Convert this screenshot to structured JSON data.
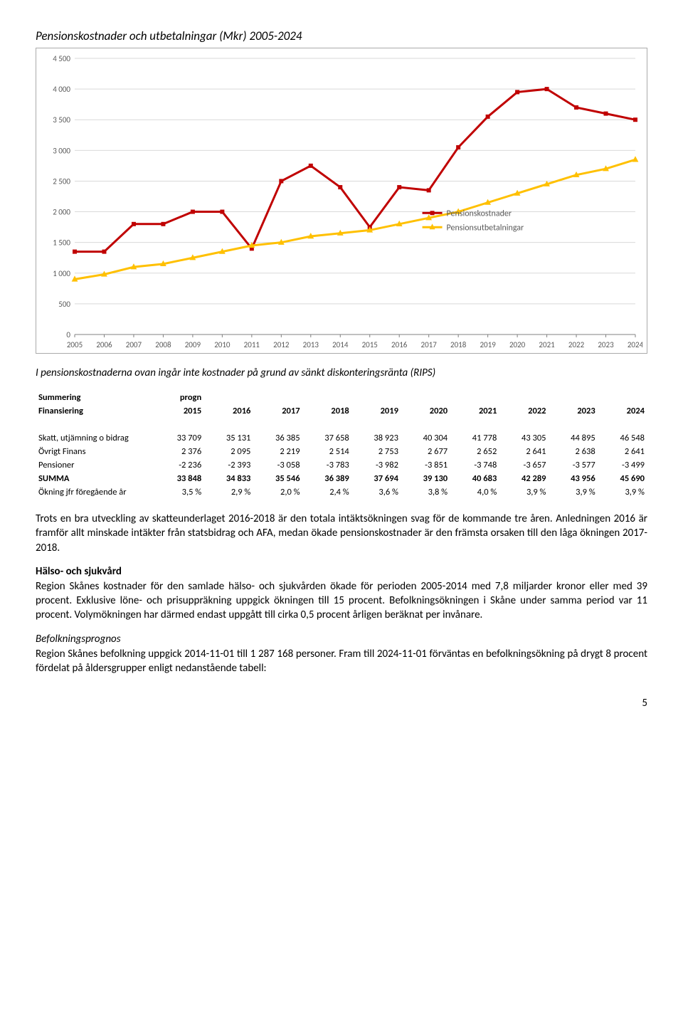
{
  "chart": {
    "title": "Pensionskostnader och utbetalningar (Mkr) 2005-2024",
    "type": "line",
    "background_color": "#ffffff",
    "grid_color": "#d9d9d9",
    "axis_color": "#808080",
    "xlabels": [
      "2005",
      "2006",
      "2007",
      "2008",
      "2009",
      "2010",
      "2011",
      "2012",
      "2013",
      "2014",
      "2015",
      "2016",
      "2017",
      "2018",
      "2019",
      "2020",
      "2021",
      "2022",
      "2023",
      "2024"
    ],
    "ylim": [
      0,
      4500
    ],
    "ytick_step": 500,
    "yticks": [
      "0",
      "500",
      "1 000",
      "1 500",
      "2 000",
      "2 500",
      "3 000",
      "3 500",
      "4 000",
      "4 500"
    ],
    "series": [
      {
        "name": "Pensionskostnader",
        "color": "#c00000",
        "marker": "square",
        "marker_size": 6,
        "line_width": 3,
        "values": [
          1350,
          1350,
          1800,
          1800,
          2000,
          2000,
          1400,
          2500,
          2750,
          2400,
          1750,
          2400,
          2350,
          3050,
          3550,
          3950,
          4000,
          3700,
          3600,
          3500
        ]
      },
      {
        "name": "Pensionsutbetalningar",
        "color": "#ffc000",
        "marker": "triangle",
        "marker_size": 7,
        "line_width": 3,
        "values": [
          900,
          980,
          1100,
          1150,
          1250,
          1350,
          1450,
          1500,
          1600,
          1650,
          1700,
          1800,
          1900,
          2000,
          2150,
          2300,
          2450,
          2600,
          2700,
          2850
        ]
      }
    ],
    "legend": {
      "position": "right-middle",
      "items": [
        "Pensionskostnader",
        "Pensionsutbetalningar"
      ]
    }
  },
  "note": "I pensionskostnaderna ovan ingår inte kostnader på grund av sänkt diskonteringsränta (RIPS)",
  "table": {
    "header_top_left": "Summering",
    "header_top_right": "progn",
    "header_row_label": "Finansiering",
    "years": [
      "2015",
      "2016",
      "2017",
      "2018",
      "2019",
      "2020",
      "2021",
      "2022",
      "2023",
      "2024"
    ],
    "rows": [
      {
        "label": "Skatt, utjämning o bidrag",
        "vals": [
          "33 709",
          "35 131",
          "36 385",
          "37 658",
          "38 923",
          "40 304",
          "41 778",
          "43 305",
          "44 895",
          "46 548"
        ]
      },
      {
        "label": "Övrigt Finans",
        "vals": [
          "2 376",
          "2 095",
          "2 219",
          "2 514",
          "2 753",
          "2 677",
          "2 652",
          "2 641",
          "2 638",
          "2 641"
        ]
      },
      {
        "label": "Pensioner",
        "vals": [
          "-2 236",
          "-2 393",
          "-3 058",
          "-3 783",
          "-3 982",
          "-3 851",
          "-3 748",
          "-3 657",
          "-3 577",
          "-3 499"
        ]
      }
    ],
    "sum": {
      "label": "SUMMA",
      "vals": [
        "33 848",
        "34 833",
        "35 546",
        "36 389",
        "37 694",
        "39 130",
        "40 683",
        "42 289",
        "43 956",
        "45 690"
      ]
    },
    "pct": {
      "label": "Ökning jfr föregående år",
      "vals": [
        "3,5 %",
        "2,9 %",
        "2,0 %",
        "2,4 %",
        "3,6 %",
        "3,8 %",
        "4,0 %",
        "3,9 %",
        "3,9 %",
        "3,9 %"
      ]
    }
  },
  "para1": "Trots en bra utveckling av skatteunderlaget 2016-2018 är den totala intäktsökningen svag för de kommande tre åren. Anledningen 2016 är framför allt minskade intäkter från statsbidrag och AFA, medan ökade pensionskostnader är den främsta orsaken till den låga ökningen 2017-2018.",
  "sec2_head": "Hälso- och sjukvård",
  "para2": "Region Skånes kostnader för den samlade hälso- och sjukvården ökade för perioden 2005-2014 med 7,8 miljarder kronor eller med 39 procent. Exklusive löne- och prisuppräkning uppgick ökningen till 15 procent. Befolkningsökningen i Skåne under samma period var 11 procent. Volymökningen har därmed endast uppgått till cirka 0,5 procent årligen beräknat per invånare.",
  "sec3_head": "Befolkningsprognos",
  "para3": "Region Skånes befolkning uppgick 2014-11-01 till 1 287 168 personer. Fram till 2024-11-01 förväntas en befolkningsökning på drygt 8 procent fördelat på åldersgrupper enligt nedanstående tabell:",
  "page_number": "5"
}
